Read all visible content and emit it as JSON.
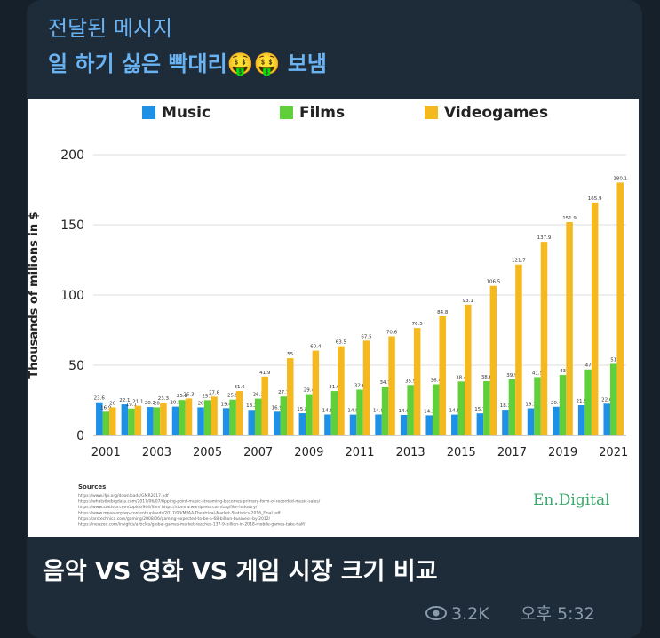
{
  "message": {
    "forwarded": "전달된 메시지",
    "sender": "일 하기 싫은 빡대리🤑🤑 보냄",
    "caption": "음악 VS 영화 VS 게임 시장 크기 비교",
    "views": "3.2K",
    "time": "오후 5:32",
    "sources_title": "Sources",
    "sources": [
      "https://www.ifpi.org/downloads/GMR2017.pdf",
      "https://whatsthebigdata.com/2017/06/07/tipping-point-music-streaming-becomes-primary-form-of-recorded-music-sales/",
      "https://www.statista.com/topics/964/film/          https://domrw.wordpress.com/tag/film-industry/",
      "https://www.mpaa.org/wp-content/uploads/2017/03/MPAA-Theatrical-Market-Statistics-2016_Final.pdf",
      "https://arstechnica.com/gaming/2008/06/gaming-expected-to-be-a-68-billion-business-by-2012/",
      "https://newzoo.com/insights/articles/global-games-market-reaches-137-9-billion-in-2018-mobile-games-take-half/"
    ],
    "logo": "En.Digital"
  },
  "chart_data": {
    "type": "bar",
    "y_label": "Thousands of milions in $",
    "categories": [
      "2001",
      null,
      "2003",
      null,
      "2005",
      null,
      "2007",
      null,
      "2009",
      null,
      "2011",
      null,
      "2013",
      null,
      "2015",
      null,
      "2017",
      null,
      "2019",
      null,
      "2021"
    ],
    "series": [
      {
        "name": "Music",
        "color": "#1e90e6",
        "values": [
          23.6,
          22.1,
          20.2,
          20.5,
          20,
          19.4,
          18.2,
          16.9,
          15.8,
          14.9,
          14.8,
          14.9,
          14.6,
          14.3,
          14.8,
          15.7,
          18.3,
          19.3,
          20.4,
          21.5,
          22.6
        ]
      },
      {
        "name": "Films",
        "color": "#5fcf3a",
        "values": [
          16.9,
          19.1,
          20,
          25.2,
          25.1,
          25.5,
          26.2,
          27.7,
          29.4,
          31.6,
          32.6,
          34.7,
          35.9,
          36.4,
          38.4,
          38.6,
          39.9,
          41.5,
          43,
          47,
          51
        ]
      },
      {
        "name": "Videogames",
        "color": "#f5b81e",
        "values": [
          20,
          21.1,
          23.3,
          26.3,
          27.6,
          31.6,
          41.9,
          55,
          60.4,
          63.5,
          67.5,
          70.6,
          76.5,
          84.8,
          93.1,
          106.5,
          121.7,
          137.9,
          151.9,
          165.9,
          180.1
        ]
      }
    ],
    "ylim": [
      0,
      200
    ],
    "yticks": [
      0,
      50,
      100,
      150,
      200
    ],
    "grid": true
  }
}
